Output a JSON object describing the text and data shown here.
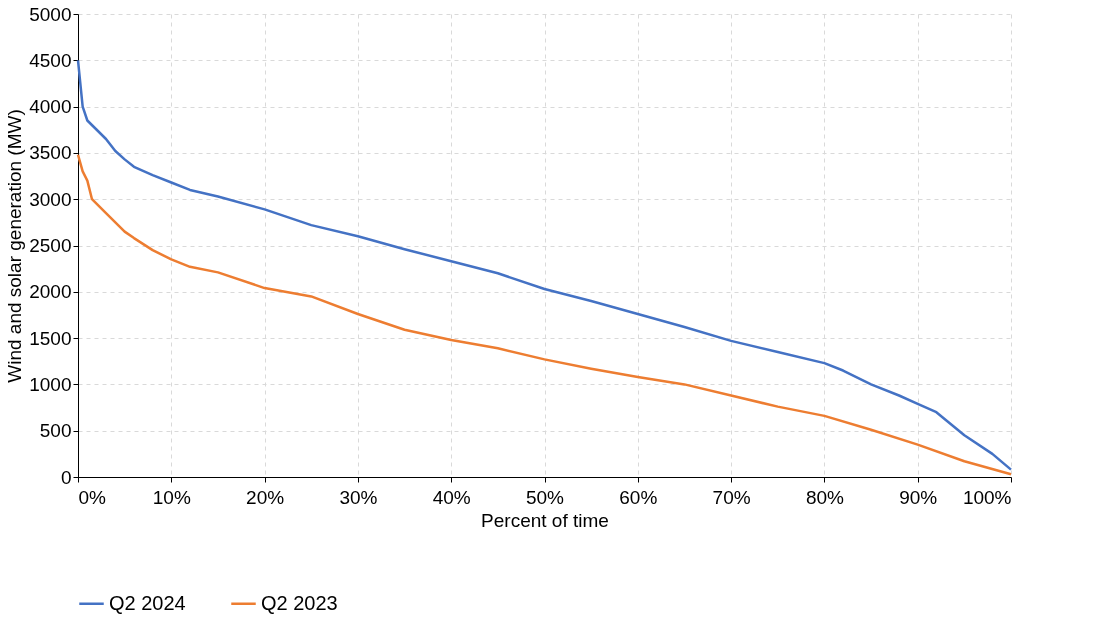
{
  "chart_data": {
    "type": "line",
    "xlabel": "Percent of time",
    "ylabel": "Wind and solar generation (MW)",
    "x": [
      0,
      0.5,
      1,
      2,
      3,
      4,
      5,
      6,
      8,
      10,
      12,
      15,
      20,
      25,
      30,
      35,
      40,
      45,
      50,
      55,
      60,
      65,
      70,
      75,
      80,
      82,
      85,
      88,
      90,
      92,
      95,
      98,
      100
    ],
    "series": [
      {
        "name": "Q2 2024",
        "color": "#4472c4",
        "values": [
          4500,
          4000,
          3850,
          3750,
          3650,
          3520,
          3430,
          3350,
          3260,
          3180,
          3100,
          3030,
          2890,
          2720,
          2600,
          2460,
          2330,
          2200,
          2030,
          1900,
          1760,
          1620,
          1470,
          1350,
          1230,
          1150,
          1000,
          880,
          790,
          700,
          450,
          250,
          80
        ]
      },
      {
        "name": "Q2 2023",
        "color": "#ed7d31",
        "x": [
          0,
          0.5,
          1,
          1.5,
          3,
          5,
          6,
          8,
          10,
          12,
          15,
          20,
          25,
          30,
          35,
          40,
          45,
          50,
          55,
          60,
          65,
          70,
          75,
          80,
          85,
          90,
          95,
          100
        ],
        "values": [
          3480,
          3300,
          3200,
          3000,
          2850,
          2650,
          2580,
          2450,
          2350,
          2270,
          2210,
          2040,
          1950,
          1760,
          1590,
          1480,
          1390,
          1270,
          1170,
          1080,
          1000,
          880,
          760,
          660,
          510,
          350,
          170,
          30
        ]
      }
    ],
    "xlim": [
      0,
      100
    ],
    "xticks": [
      {
        "value": 0,
        "label": "0%"
      },
      {
        "value": 10,
        "label": "10%"
      },
      {
        "value": 20,
        "label": "20%"
      },
      {
        "value": 30,
        "label": "30%"
      },
      {
        "value": 40,
        "label": "40%"
      },
      {
        "value": 50,
        "label": "50%"
      },
      {
        "value": 60,
        "label": "60%"
      },
      {
        "value": 70,
        "label": "70%"
      },
      {
        "value": 80,
        "label": "80%"
      },
      {
        "value": 90,
        "label": "90%"
      },
      {
        "value": 100,
        "label": "100%"
      }
    ],
    "ylim": [
      0,
      5000
    ],
    "yticks": [
      0,
      500,
      1000,
      1500,
      2000,
      2500,
      3000,
      3500,
      4000,
      4500,
      5000
    ],
    "grid": true,
    "legend": "bottom",
    "line_style": "solid",
    "marker": "none"
  }
}
